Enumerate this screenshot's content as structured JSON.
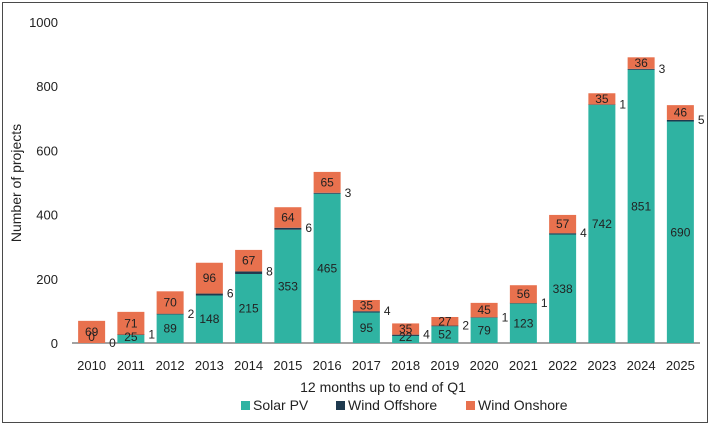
{
  "chart_data": {
    "type": "bar",
    "stacked": true,
    "title": "",
    "xlabel": "12 months up to end of Q1",
    "ylabel": "Number of projects",
    "ylim": [
      0,
      1000
    ],
    "yticks": [
      "0",
      "200",
      "400",
      "600",
      "800",
      "1000"
    ],
    "grid": false,
    "legend_position": "bottom",
    "categories": [
      "2010",
      "2011",
      "2012",
      "2013",
      "2014",
      "2015",
      "2016",
      "2017",
      "2018",
      "2019",
      "2020",
      "2021",
      "2022",
      "2023",
      "2024",
      "2025"
    ],
    "series": [
      {
        "name": "Solar PV",
        "color": "#2fb3a2",
        "values": [
          0,
          25,
          89,
          148,
          215,
          353,
          465,
          95,
          22,
          52,
          79,
          123,
          338,
          742,
          851,
          690
        ]
      },
      {
        "name": "Wind Offshore",
        "color": "#1e3a4f",
        "values": [
          0,
          1,
          2,
          6,
          8,
          6,
          3,
          4,
          4,
          2,
          1,
          1,
          4,
          1,
          3,
          5
        ]
      },
      {
        "name": "Wind Onshore",
        "color": "#e8714e",
        "values": [
          69,
          71,
          70,
          96,
          67,
          64,
          65,
          35,
          35,
          27,
          45,
          56,
          57,
          35,
          36,
          46
        ]
      }
    ]
  }
}
